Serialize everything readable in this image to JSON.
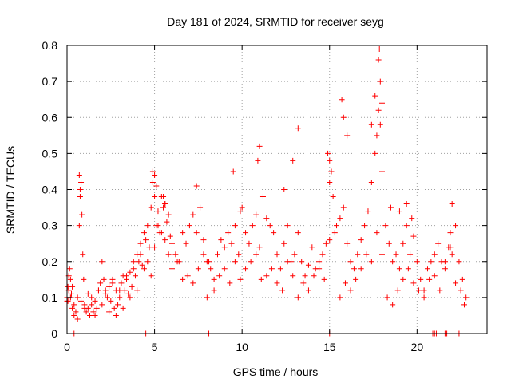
{
  "chart_data": {
    "type": "scatter",
    "title": "Day 181 of 2024, SRMTID for receiver seyg",
    "xlabel": "GPS time / hours",
    "ylabel": "SRMTID / TECUs",
    "xlim": [
      0,
      24
    ],
    "ylim": [
      0,
      0.8
    ],
    "xticks": [
      0,
      5,
      10,
      15,
      20
    ],
    "xtick_labels": [
      "0",
      "5",
      "10",
      "15",
      "20"
    ],
    "yticks": [
      0,
      0.1,
      0.2,
      0.3,
      0.4,
      0.5,
      0.6,
      0.7,
      0.8
    ],
    "ytick_labels": [
      "0",
      "0.1",
      "0.2",
      "0.3",
      "0.4",
      "0.5",
      "0.6",
      "0.7",
      "0.8"
    ],
    "grid": true,
    "marker": "+",
    "marker_color": "#ff0000",
    "series": [
      {
        "name": "SRMTID",
        "x": [
          0.0,
          0.05,
          0.1,
          0.15,
          0.2,
          0.25,
          0.3,
          0.4,
          0.5,
          0.6,
          0.7,
          0.75,
          0.8,
          0.85,
          0.9,
          0.95,
          1.0,
          1.1,
          1.2,
          1.3,
          1.4,
          1.5,
          1.6,
          1.7,
          1.8,
          1.9,
          2.0,
          2.1,
          2.2,
          2.3,
          2.4,
          2.5,
          2.6,
          2.7,
          2.8,
          2.9,
          3.0,
          3.1,
          3.2,
          3.3,
          3.4,
          3.5,
          3.6,
          3.7,
          3.8,
          3.9,
          4.0,
          4.1,
          4.2,
          4.3,
          4.4,
          4.5,
          4.6,
          4.7,
          4.8,
          4.9,
          5.0,
          5.1,
          5.2,
          5.3,
          5.4,
          5.5,
          5.6,
          5.7,
          5.8,
          5.9,
          6.0,
          6.2,
          6.4,
          6.6,
          6.8,
          7.0,
          7.2,
          7.4,
          7.6,
          7.8,
          8.0,
          8.2,
          8.4,
          8.6,
          8.8,
          9.0,
          9.2,
          9.4,
          9.6,
          9.8,
          10.0,
          10.2,
          10.4,
          10.6,
          10.8,
          11.0,
          11.2,
          11.4,
          11.6,
          11.8,
          12.0,
          12.2,
          12.4,
          12.6,
          12.8,
          13.0,
          13.2,
          13.4,
          13.6,
          13.8,
          14.0,
          14.2,
          14.4,
          14.6,
          14.8,
          15.0,
          15.1,
          15.2,
          15.4,
          15.6,
          15.8,
          16.0,
          16.2,
          16.4,
          16.6,
          16.8,
          17.0,
          17.2,
          17.4,
          17.6,
          17.7,
          17.8,
          17.9,
          18.0,
          18.2,
          18.4,
          18.6,
          18.8,
          19.0,
          19.2,
          19.4,
          19.6,
          19.8,
          20.0,
          20.2,
          20.4,
          20.6,
          20.8,
          21.0,
          21.2,
          21.4,
          21.6,
          21.8,
          22.0,
          22.2,
          22.4,
          22.6,
          22.8,
          0.0,
          0.05,
          0.1,
          0.2,
          0.3,
          0.4,
          0.6,
          0.8,
          1.0,
          1.2,
          1.4,
          1.6,
          1.8,
          2.0,
          2.2,
          2.4,
          2.6,
          2.8,
          3.0,
          3.2,
          3.4,
          3.6,
          3.8,
          4.0,
          4.2,
          4.4,
          4.6,
          4.8,
          5.0,
          5.2,
          5.4,
          5.6,
          5.8,
          6.0,
          6.3,
          6.6,
          6.9,
          7.2,
          7.5,
          7.8,
          8.1,
          8.4,
          8.7,
          9.0,
          9.3,
          9.6,
          9.9,
          10.2,
          10.5,
          10.8,
          11.1,
          11.4,
          11.7,
          12.0,
          12.3,
          12.6,
          12.9,
          13.2,
          13.5,
          13.8,
          14.1,
          14.4,
          14.7,
          15.0,
          15.3,
          15.6,
          15.9,
          16.2,
          16.5,
          16.8,
          17.1,
          17.4,
          17.7,
          18.0,
          18.3,
          18.6,
          18.9,
          19.2,
          19.5,
          19.8,
          20.1,
          20.4,
          20.7,
          21.0,
          21.3,
          21.6,
          21.9,
          22.2,
          22.5,
          22.7,
          0.7,
          0.75,
          4.9,
          5.0,
          5.1,
          5.5,
          5.6,
          7.4,
          8.0,
          9.5,
          9.9,
          10.9,
          11.0,
          12.4,
          12.9,
          13.2,
          14.9,
          15.0,
          15.1,
          15.7,
          15.8,
          16.0,
          17.4,
          17.6,
          17.8,
          17.85,
          17.9,
          18.0,
          18.5,
          19.0,
          19.4,
          19.7,
          21.9,
          22.0,
          0.4,
          4.5,
          8.1,
          15.0,
          20.9,
          21.0,
          21.1,
          21.6,
          21.7,
          22.4
        ],
        "y": [
          0.1,
          0.09,
          0.12,
          0.18,
          0.15,
          0.11,
          0.13,
          0.05,
          0.06,
          0.1,
          0.3,
          0.38,
          0.42,
          0.33,
          0.22,
          0.15,
          0.08,
          0.06,
          0.07,
          0.05,
          0.08,
          0.06,
          0.09,
          0.07,
          0.12,
          0.14,
          0.2,
          0.15,
          0.12,
          0.1,
          0.13,
          0.09,
          0.15,
          0.07,
          0.12,
          0.08,
          0.1,
          0.14,
          0.16,
          0.12,
          0.15,
          0.11,
          0.17,
          0.13,
          0.2,
          0.16,
          0.22,
          0.2,
          0.25,
          0.19,
          0.28,
          0.26,
          0.3,
          0.24,
          0.35,
          0.42,
          0.38,
          0.3,
          0.34,
          0.28,
          0.38,
          0.35,
          0.36,
          0.31,
          0.33,
          0.27,
          0.25,
          0.22,
          0.2,
          0.28,
          0.25,
          0.3,
          0.33,
          0.28,
          0.35,
          0.26,
          0.2,
          0.18,
          0.15,
          0.22,
          0.26,
          0.24,
          0.28,
          0.25,
          0.3,
          0.22,
          0.35,
          0.28,
          0.25,
          0.3,
          0.33,
          0.24,
          0.38,
          0.32,
          0.3,
          0.28,
          0.22,
          0.18,
          0.25,
          0.3,
          0.2,
          0.22,
          0.28,
          0.2,
          0.16,
          0.19,
          0.24,
          0.18,
          0.2,
          0.22,
          0.25,
          0.42,
          0.45,
          0.38,
          0.3,
          0.32,
          0.35,
          0.25,
          0.2,
          0.18,
          0.22,
          0.26,
          0.3,
          0.34,
          0.42,
          0.5,
          0.55,
          0.62,
          0.58,
          0.45,
          0.3,
          0.25,
          0.2,
          0.22,
          0.18,
          0.25,
          0.3,
          0.22,
          0.27,
          0.2,
          0.15,
          0.12,
          0.18,
          0.2,
          0.22,
          0.25,
          0.2,
          0.18,
          0.24,
          0.22,
          0.3,
          0.2,
          0.15,
          0.1,
          0.09,
          0.13,
          0.16,
          0.1,
          0.07,
          0.08,
          0.04,
          0.09,
          0.07,
          0.11,
          0.1,
          0.05,
          0.12,
          0.08,
          0.11,
          0.06,
          0.14,
          0.05,
          0.12,
          0.07,
          0.16,
          0.1,
          0.18,
          0.12,
          0.22,
          0.18,
          0.2,
          0.16,
          0.24,
          0.3,
          0.28,
          0.26,
          0.22,
          0.18,
          0.2,
          0.15,
          0.16,
          0.14,
          0.18,
          0.22,
          0.2,
          0.12,
          0.16,
          0.18,
          0.14,
          0.2,
          0.15,
          0.18,
          0.2,
          0.22,
          0.15,
          0.16,
          0.18,
          0.14,
          0.12,
          0.2,
          0.16,
          0.1,
          0.14,
          0.12,
          0.16,
          0.18,
          0.15,
          0.26,
          0.28,
          0.1,
          0.14,
          0.12,
          0.15,
          0.18,
          0.22,
          0.2,
          0.28,
          0.22,
          0.1,
          0.08,
          0.12,
          0.15,
          0.18,
          0.14,
          0.12,
          0.1,
          0.15,
          0.16,
          0.12,
          0.2,
          0.24,
          0.14,
          0.12,
          0.08,
          0.44,
          0.4,
          0.45,
          0.44,
          0.41,
          0.38,
          0.36,
          0.41,
          0.1,
          0.45,
          0.34,
          0.48,
          0.52,
          0.4,
          0.48,
          0.57,
          0.5,
          0.48,
          0.45,
          0.65,
          0.6,
          0.55,
          0.58,
          0.66,
          0.76,
          0.79,
          0.7,
          0.64,
          0.35,
          0.34,
          0.36,
          0.32,
          0.28,
          0.36,
          0.0,
          0.0,
          0.0,
          0.0,
          0.0,
          0.0,
          0.0,
          0.0,
          0.0,
          0.0
        ]
      }
    ]
  }
}
